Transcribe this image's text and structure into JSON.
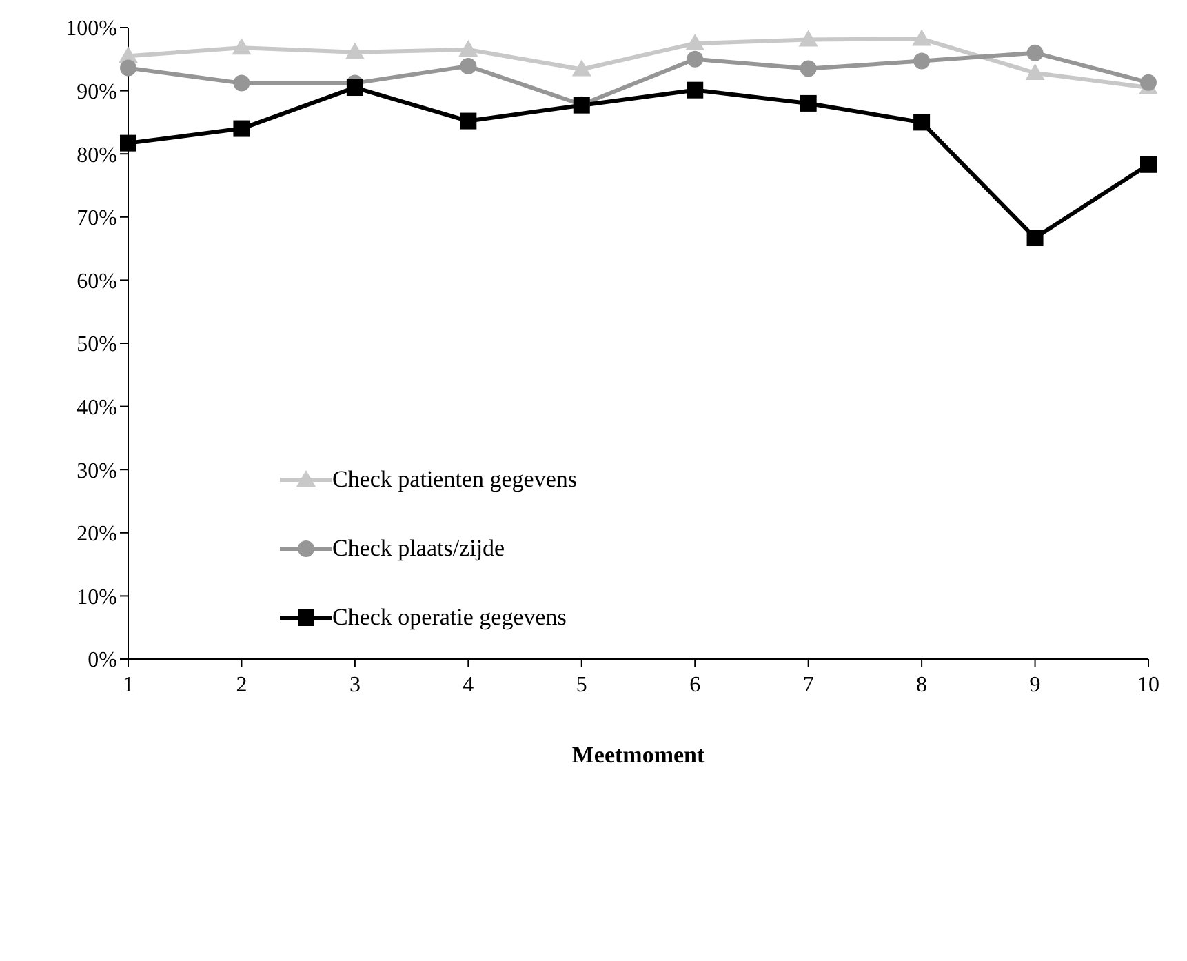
{
  "chart_data": {
    "type": "line",
    "xlabel": "Meetmoment",
    "categories": [
      "1",
      "2",
      "3",
      "4",
      "5",
      "6",
      "7",
      "8",
      "9",
      "10"
    ],
    "series": [
      {
        "name": "Check patienten gegevens",
        "color": "#c8c8c8",
        "marker": "triangle",
        "values": [
          95.5,
          96.8,
          96.1,
          96.5,
          93.4,
          97.5,
          98.1,
          98.2,
          92.8,
          90.5
        ]
      },
      {
        "name": "Check plaats/zijde",
        "color": "#969696",
        "marker": "circle",
        "values": [
          93.6,
          91.2,
          91.2,
          93.9,
          87.8,
          95.0,
          93.5,
          94.7,
          96.0,
          91.3
        ]
      },
      {
        "name": "Check operatie gegevens",
        "color": "#000000",
        "marker": "square",
        "values": [
          81.7,
          84.0,
          90.5,
          85.2,
          87.7,
          90.1,
          88.0,
          85.0,
          66.7,
          78.3
        ]
      }
    ],
    "ylim": [
      0,
      100
    ],
    "yticks": [
      {
        "value": 0,
        "label": "0%"
      },
      {
        "value": 10,
        "label": "10%"
      },
      {
        "value": 20,
        "label": "20%"
      },
      {
        "value": 30,
        "label": "30%"
      },
      {
        "value": 40,
        "label": "40%"
      },
      {
        "value": 50,
        "label": "50%"
      },
      {
        "value": 60,
        "label": "60%"
      },
      {
        "value": 70,
        "label": "70%"
      },
      {
        "value": 80,
        "label": "80%"
      },
      {
        "value": 90,
        "label": "90%"
      },
      {
        "value": 100,
        "label": "100%"
      }
    ],
    "grid": false,
    "legend": "left",
    "line_style": "solid"
  }
}
